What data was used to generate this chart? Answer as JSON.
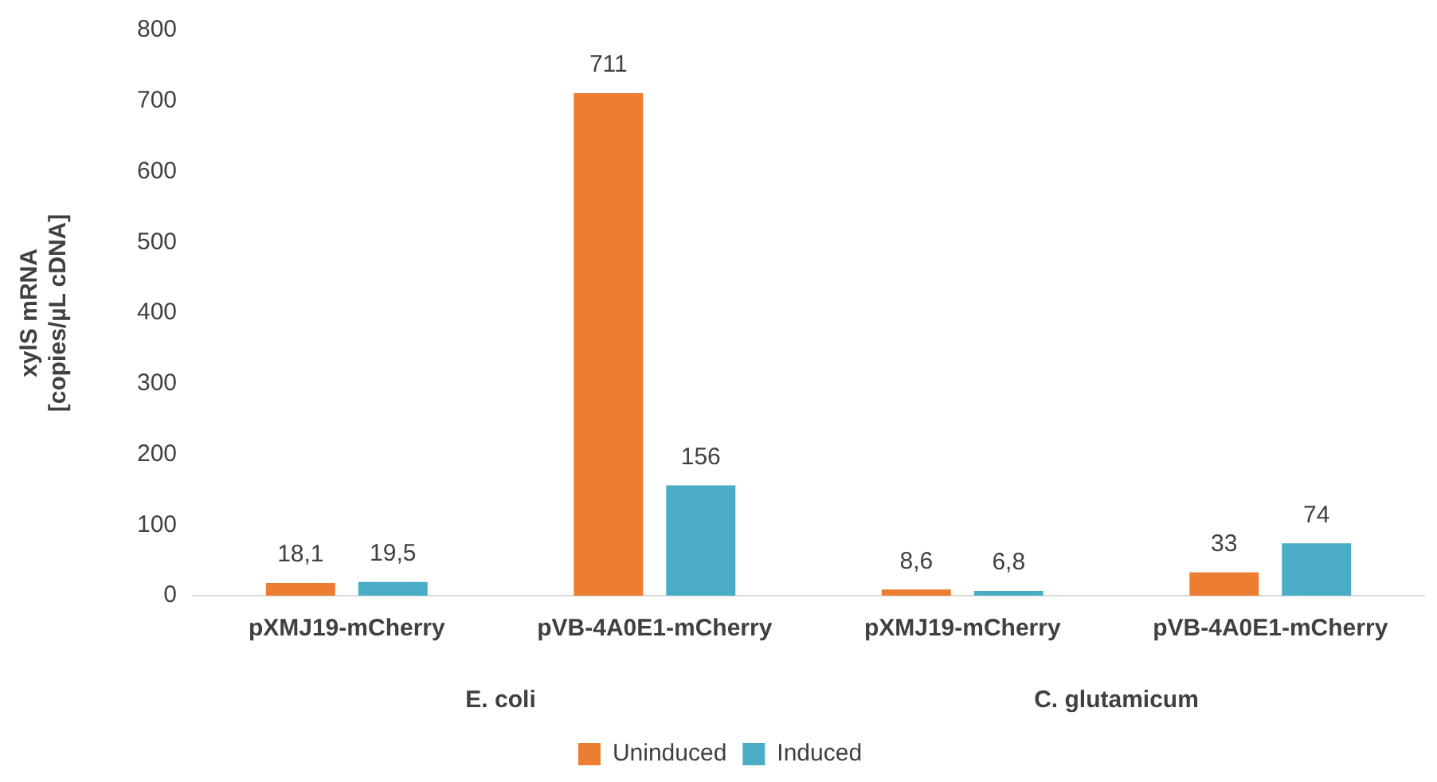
{
  "chart_data": {
    "type": "bar",
    "ylabel": "xylS mRNA [copies/µL cDNA]",
    "categories": [
      "pXMJ19-mCherry",
      "pVB-4A0E1-mCherry",
      "pXMJ19-mCherry",
      "pVB-4A0E1-mCherry"
    ],
    "series": [
      {
        "name": "Uninduced",
        "color": "#ed7d31",
        "values": [
          18.1,
          711,
          8.6,
          33
        ],
        "value_labels": [
          "18,1",
          "711",
          "8,6",
          "33"
        ]
      },
      {
        "name": "Induced",
        "color": "#4bacc6",
        "values": [
          19.5,
          156,
          6.8,
          74
        ],
        "value_labels": [
          "19,5",
          "156",
          "6,8",
          "74"
        ]
      }
    ],
    "annotations": [
      "E. coli",
      "C. glutamicum"
    ],
    "ylim": [
      0,
      800
    ],
    "yticks": [
      0,
      100,
      200,
      300,
      400,
      500,
      600,
      700,
      800
    ],
    "grid": false,
    "legend": "bottom"
  }
}
